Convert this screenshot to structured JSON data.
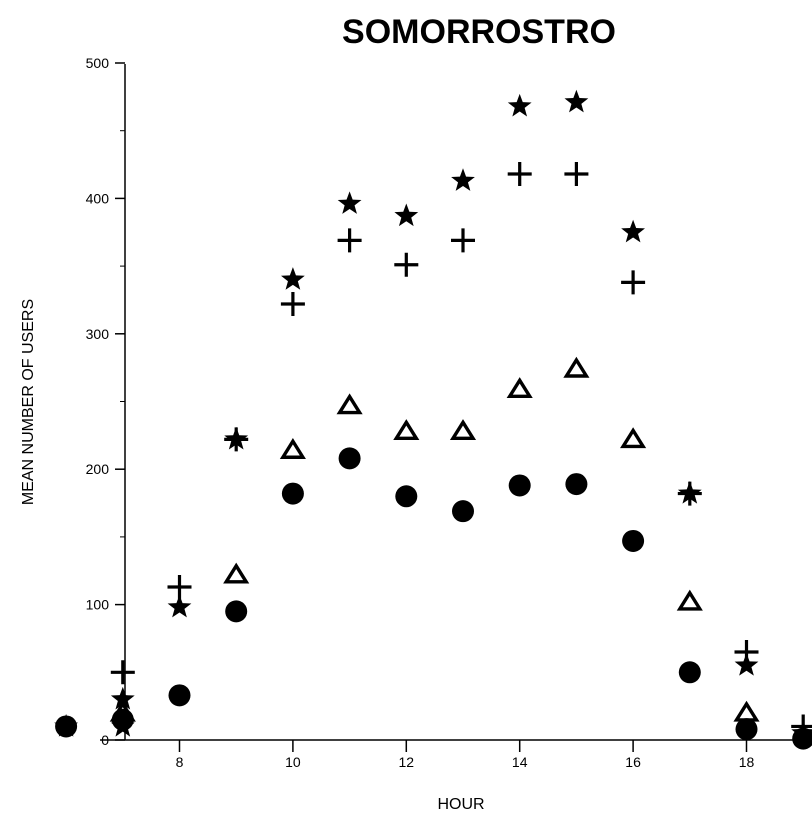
{
  "chart_data": {
    "type": "scatter",
    "title": "SOMORROSTRO",
    "xlabel": "HOUR",
    "ylabel": "MEAN NUMBER OF USERS",
    "xlim": [
      6,
      19
    ],
    "ylim": [
      0,
      500
    ],
    "xticks": [
      8,
      10,
      12,
      14,
      16,
      18
    ],
    "yticks": [
      0,
      100,
      200,
      300,
      400,
      500
    ],
    "grid": false,
    "legend": "none",
    "series": [
      {
        "marker": "star",
        "color": "#000000",
        "points": [
          [
            6,
            10
          ],
          [
            7,
            10
          ],
          [
            7,
            30
          ],
          [
            8,
            98
          ],
          [
            9,
            222
          ],
          [
            10,
            340
          ],
          [
            11,
            396
          ],
          [
            12,
            387
          ],
          [
            13,
            413
          ],
          [
            14,
            468
          ],
          [
            15,
            471
          ],
          [
            16,
            375
          ],
          [
            17,
            182
          ],
          [
            18,
            55
          ],
          [
            19,
            5
          ]
        ]
      },
      {
        "marker": "plus",
        "color": "#000000",
        "points": [
          [
            7,
            50
          ],
          [
            8,
            113
          ],
          [
            9,
            222
          ],
          [
            10,
            322
          ],
          [
            11,
            369
          ],
          [
            12,
            351
          ],
          [
            13,
            369
          ],
          [
            14,
            418
          ],
          [
            15,
            418
          ],
          [
            16,
            338
          ],
          [
            17,
            182
          ],
          [
            18,
            65
          ],
          [
            19,
            10
          ]
        ]
      },
      {
        "marker": "triangle",
        "color": "#000000",
        "points": [
          [
            7,
            20
          ],
          [
            9,
            122
          ],
          [
            10,
            214
          ],
          [
            11,
            247
          ],
          [
            12,
            228
          ],
          [
            13,
            228
          ],
          [
            14,
            259
          ],
          [
            15,
            274
          ],
          [
            16,
            222
          ],
          [
            17,
            102
          ],
          [
            18,
            20
          ]
        ]
      },
      {
        "marker": "circle",
        "color": "#000000",
        "points": [
          [
            6,
            10
          ],
          [
            7,
            15
          ],
          [
            8,
            33
          ],
          [
            9,
            95
          ],
          [
            10,
            182
          ],
          [
            11,
            208
          ],
          [
            12,
            180
          ],
          [
            13,
            169
          ],
          [
            14,
            188
          ],
          [
            15,
            189
          ],
          [
            16,
            147
          ],
          [
            17,
            50
          ],
          [
            18,
            8
          ],
          [
            19,
            1
          ]
        ]
      }
    ]
  }
}
